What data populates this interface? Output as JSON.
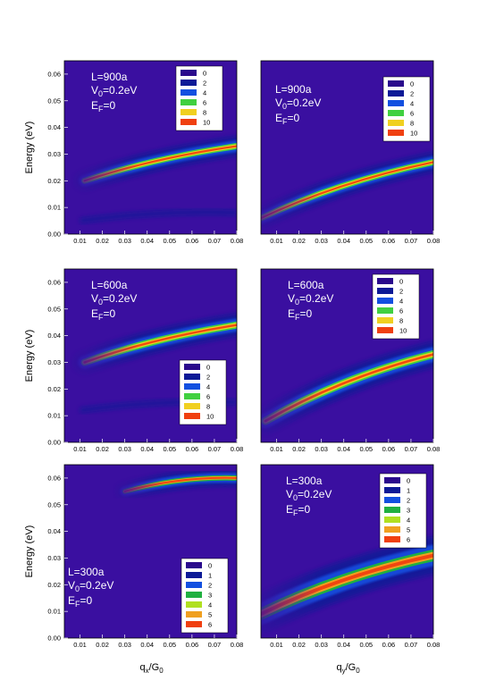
{
  "chart_data": [
    {
      "type": "heatmap",
      "id": "p1",
      "annotation": {
        "L": "L=900a",
        "V_main": "V",
        "V_sub": "0",
        "V_rest": "=0.2eV",
        "E_main": "E",
        "E_sub": "F",
        "E_rest": "=0"
      },
      "ylabel": "Energy (eV)",
      "xlim": [
        0.003,
        0.08
      ],
      "ylim": [
        0,
        0.065
      ],
      "xticks": [
        "0.01",
        "0.02",
        "0.03",
        "0.04",
        "0.05",
        "0.06",
        "0.07",
        "0.08"
      ],
      "yticks": [
        "0.00",
        "0.01",
        "0.02",
        "0.03",
        "0.04",
        "0.05",
        "0.06"
      ],
      "legend": [
        "0",
        "2",
        "4",
        "6",
        "8",
        "10"
      ],
      "legend_colors": [
        "#2a0a8c",
        "#0c1a96",
        "#1250e0",
        "#40d040",
        "#f0d020",
        "#f04010"
      ],
      "legend_position": "top-right",
      "band": {
        "start": [
          0.012,
          0.02
        ],
        "end": [
          0.08,
          0.033
        ],
        "curve": "concave"
      }
    },
    {
      "type": "heatmap",
      "id": "p2",
      "annotation": {
        "L": "L=900a",
        "V_main": "V",
        "V_sub": "0",
        "V_rest": "=0.2eV",
        "E_main": "E",
        "E_sub": "F",
        "E_rest": "=0"
      },
      "xlim": [
        0.003,
        0.08
      ],
      "ylim": [
        0,
        0.065
      ],
      "xticks": [
        "0.01",
        "0.02",
        "0.03",
        "0.04",
        "0.05",
        "0.06",
        "0.07",
        "0.08"
      ],
      "legend": [
        "0",
        "2",
        "4",
        "6",
        "8",
        "10"
      ],
      "legend_colors": [
        "#2a0a8c",
        "#0c1a96",
        "#1250e0",
        "#40d040",
        "#f0d020",
        "#f04010"
      ],
      "legend_position": "top-right",
      "band": {
        "start": [
          0.003,
          0.006
        ],
        "end": [
          0.08,
          0.027
        ],
        "curve": "concave"
      }
    },
    {
      "type": "heatmap",
      "id": "p3",
      "annotation": {
        "L": "L=600a",
        "V_main": "V",
        "V_sub": "0",
        "V_rest": "=0.2eV",
        "E_main": "E",
        "E_sub": "F",
        "E_rest": "=0"
      },
      "ylabel": "Energy (eV)",
      "xlim": [
        0.003,
        0.08
      ],
      "ylim": [
        0,
        0.065
      ],
      "xticks": [
        "0.01",
        "0.02",
        "0.03",
        "0.04",
        "0.05",
        "0.06",
        "0.07",
        "0.08"
      ],
      "yticks": [
        "0.00",
        "0.01",
        "0.02",
        "0.03",
        "0.04",
        "0.05",
        "0.06"
      ],
      "legend": [
        "0",
        "2",
        "4",
        "6",
        "8",
        "10"
      ],
      "legend_colors": [
        "#2a0a8c",
        "#0c1a96",
        "#1250e0",
        "#40d040",
        "#f0d020",
        "#f04010"
      ],
      "legend_position": "bottom-right",
      "band": {
        "start": [
          0.012,
          0.03
        ],
        "end": [
          0.08,
          0.044
        ],
        "curve": "concave"
      }
    },
    {
      "type": "heatmap",
      "id": "p4",
      "annotation": {
        "L": "L=600a",
        "V_main": "V",
        "V_sub": "0",
        "V_rest": "=0.2eV",
        "E_main": "E",
        "E_sub": "F",
        "E_rest": "=0"
      },
      "xlim": [
        0.003,
        0.08
      ],
      "ylim": [
        0,
        0.065
      ],
      "xticks": [
        "0.01",
        "0.02",
        "0.03",
        "0.04",
        "0.05",
        "0.06",
        "0.07",
        "0.08"
      ],
      "legend": [
        "0",
        "2",
        "4",
        "6",
        "8",
        "10"
      ],
      "legend_colors": [
        "#2a0a8c",
        "#0c1a96",
        "#1250e0",
        "#40d040",
        "#f0d020",
        "#f04010"
      ],
      "legend_position": "top-right",
      "band": {
        "start": [
          0.005,
          0.008
        ],
        "end": [
          0.08,
          0.033
        ],
        "curve": "concave"
      }
    },
    {
      "type": "heatmap",
      "id": "p5",
      "annotation": {
        "L": "L=300a",
        "V_main": "V",
        "V_sub": "0",
        "V_rest": "=0.2eV",
        "E_main": "E",
        "E_sub": "F",
        "E_rest": "=0"
      },
      "ylabel": "Energy (eV)",
      "xlabel_main": "q",
      "xlabel_sub": "x",
      "xlabel_mid": "/G",
      "xlabel_sub2": "0",
      "xlim": [
        0.003,
        0.08
      ],
      "ylim": [
        0,
        0.065
      ],
      "xticks": [
        "0.01",
        "0.02",
        "0.03",
        "0.04",
        "0.05",
        "0.06",
        "0.07",
        "0.08"
      ],
      "yticks": [
        "0.00",
        "0.01",
        "0.02",
        "0.03",
        "0.04",
        "0.05",
        "0.06"
      ],
      "legend": [
        "0",
        "1",
        "2",
        "3",
        "4",
        "5",
        "6"
      ],
      "legend_colors": [
        "#2a0a8c",
        "#0c1a96",
        "#1250e0",
        "#20b040",
        "#b0e020",
        "#f0a020",
        "#f04010"
      ],
      "legend_position": "bottom-right",
      "band": {
        "start": [
          0.03,
          0.055
        ],
        "end": [
          0.08,
          0.06
        ],
        "curve": "flat"
      }
    },
    {
      "type": "heatmap",
      "id": "p6",
      "annotation": {
        "L": "L=300a",
        "V_main": "V",
        "V_sub": "0",
        "V_rest": "=0.2eV",
        "E_main": "E",
        "E_sub": "F",
        "E_rest": "=0"
      },
      "xlabel_main": "q",
      "xlabel_sub": "y",
      "xlabel_mid": "/G",
      "xlabel_sub2": "0",
      "xlim": [
        0.003,
        0.08
      ],
      "ylim": [
        0,
        0.065
      ],
      "xticks": [
        "0.01",
        "0.02",
        "0.03",
        "0.04",
        "0.05",
        "0.06",
        "0.07",
        "0.08"
      ],
      "legend": [
        "0",
        "1",
        "2",
        "3",
        "4",
        "5",
        "6"
      ],
      "legend_colors": [
        "#2a0a8c",
        "#0c1a96",
        "#1250e0",
        "#20b040",
        "#b0e020",
        "#f0a020",
        "#f04010"
      ],
      "legend_position": "top-right",
      "band": {
        "start": [
          0.003,
          0.009
        ],
        "end": [
          0.08,
          0.031
        ],
        "curve": "concave"
      }
    }
  ],
  "colors": {
    "background": "#3a0fa0",
    "axis": "#000000"
  }
}
